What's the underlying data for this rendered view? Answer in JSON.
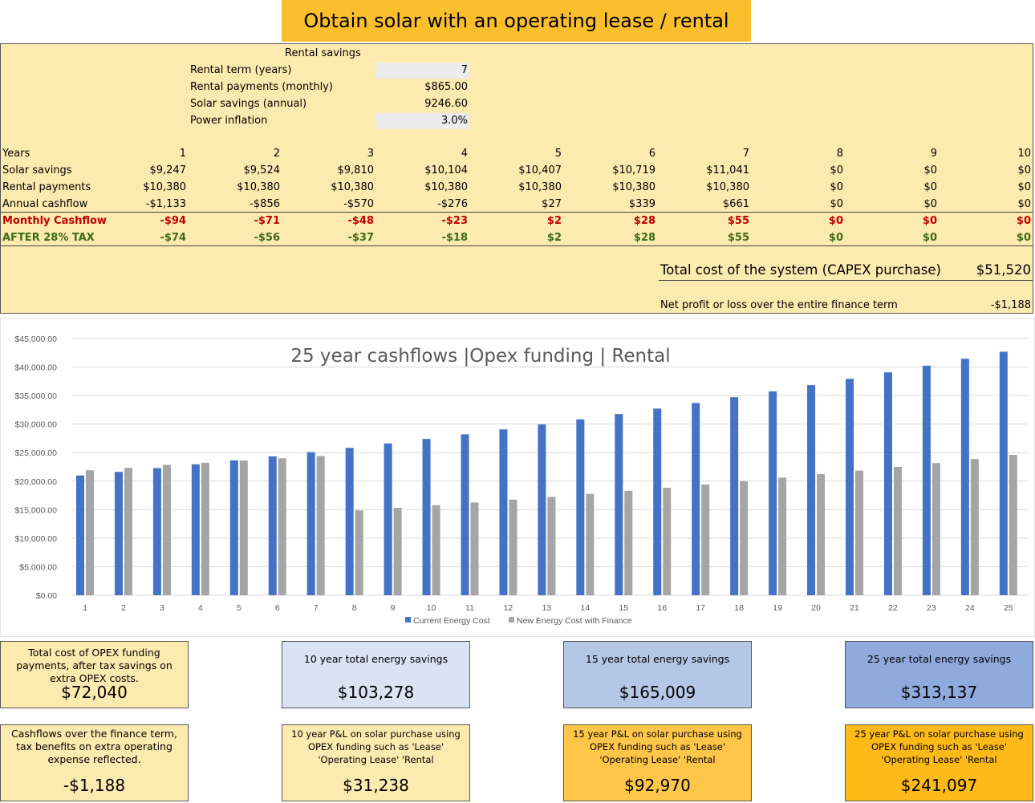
{
  "title": "Obtain solar with an operating lease / rental",
  "rental": {
    "heading": "Rental savings",
    "params": [
      {
        "label": "Rental term (years)",
        "value": "7"
      },
      {
        "label": "Rental payments (monthly)",
        "value": "$865.00"
      },
      {
        "label": "Solar savings (annual)",
        "value": "9246.60"
      },
      {
        "label": "Power inflation",
        "value": "3.0%"
      }
    ]
  },
  "table": {
    "rows": [
      {
        "label": "Years",
        "values": [
          "1",
          "2",
          "3",
          "4",
          "5",
          "6",
          "7",
          "8",
          "9",
          "10"
        ]
      },
      {
        "label": "Solar savings",
        "values": [
          "$9,247",
          "$9,524",
          "$9,810",
          "$10,104",
          "$10,407",
          "$10,719",
          "$11,041",
          "$0",
          "$0",
          "$0"
        ]
      },
      {
        "label": "Rental payments",
        "values": [
          "$10,380",
          "$10,380",
          "$10,380",
          "$10,380",
          "$10,380",
          "$10,380",
          "$10,380",
          "$0",
          "$0",
          "$0"
        ]
      },
      {
        "label": "Annual cashflow",
        "values": [
          "-$1,133",
          "-$856",
          "-$570",
          "-$276",
          "$27",
          "$339",
          "$661",
          "$0",
          "$0",
          "$0"
        ]
      },
      {
        "label": "Monthly Cashflow",
        "values": [
          "-$94",
          "-$71",
          "-$48",
          "-$23",
          "$2",
          "$28",
          "$55",
          "$0",
          "$0",
          "$0"
        ]
      },
      {
        "label": "AFTER 28% TAX",
        "values": [
          "-$74",
          "-$56",
          "-$37",
          "-$18",
          "$2",
          "$28",
          "$55",
          "$0",
          "$0",
          "$0"
        ]
      }
    ]
  },
  "summary": {
    "total_cost_label": "Total cost of the system (CAPEX purchase)",
    "total_cost_value": "$51,520",
    "net_label": "Net profit or loss over the entire finance term",
    "net_value": "-$1,188"
  },
  "chart_data": {
    "type": "bar",
    "title": "25 year cashflows |Opex funding | Rental",
    "xlabel": "",
    "ylabel": "",
    "ylim": [
      0,
      45000
    ],
    "yticks": [
      "$0.00",
      "$5,000.00",
      "$10,000.00",
      "$15,000.00",
      "$20,000.00",
      "$25,000.00",
      "$30,000.00",
      "$35,000.00",
      "$40,000.00",
      "$45,000.00"
    ],
    "categories": [
      "1",
      "2",
      "3",
      "4",
      "5",
      "6",
      "7",
      "8",
      "9",
      "10",
      "11",
      "12",
      "13",
      "14",
      "15",
      "16",
      "17",
      "18",
      "19",
      "20",
      "21",
      "22",
      "23",
      "24",
      "25"
    ],
    "series": [
      {
        "name": "Current Energy Cost",
        "color": "#4472c4",
        "values": [
          21000,
          21630,
          22280,
          22950,
          23640,
          24350,
          25080,
          25830,
          26600,
          27400,
          28220,
          29070,
          29940,
          30840,
          31770,
          32720,
          33700,
          34710,
          35750,
          36830,
          37930,
          39070,
          40240,
          41450,
          42690
        ]
      },
      {
        "name": "New Energy Cost with Finance",
        "color": "#a5a5a5",
        "values": [
          21900,
          22330,
          22850,
          23230,
          23610,
          24010,
          24420,
          14880,
          15330,
          15790,
          16260,
          16750,
          17250,
          17770,
          18300,
          18850,
          19420,
          20000,
          20600,
          21220,
          21850,
          22510,
          23180,
          23880,
          24600
        ]
      }
    ],
    "legend_position": "bottom"
  },
  "cards": [
    {
      "label": "Total cost of OPEX funding payments, after tax savings on extra OPEX costs.",
      "value": "$72,040"
    },
    {
      "label": "10 year total energy savings",
      "value": "$103,278"
    },
    {
      "label": "15 year total energy savings",
      "value": "$165,009"
    },
    {
      "label": "25 year total energy savings",
      "value": "$313,137"
    },
    {
      "label": "Cashflows over the finance term, tax benefits on extra operating expense reflected.",
      "value": "-$1,188"
    },
    {
      "label": "10 year P&L on solar purchase using OPEX funding such as 'Lease' 'Operating Lease' 'Rental",
      "value": "$31,238"
    },
    {
      "label": "15 year P&L on solar purchase using OPEX funding such as 'Lease' 'Operating Lease' 'Rental",
      "value": "$92,970"
    },
    {
      "label": "25 year P&L on solar purchase using OPEX funding such as 'Lease' 'Operating Lease' 'Rental",
      "value": "$241,097"
    }
  ]
}
